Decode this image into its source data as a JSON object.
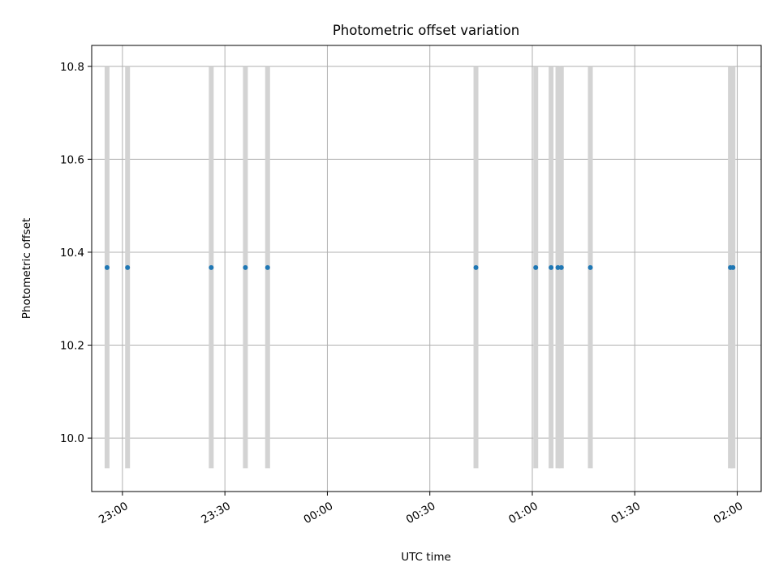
{
  "chart_data": {
    "type": "scatter",
    "title": "Photometric offset variation",
    "xlabel": "UTC time",
    "ylabel": "Photometric offset",
    "xlim": [
      "22:51",
      "02:07"
    ],
    "ylim": [
      9.885,
      10.845
    ],
    "grid": true,
    "x_ticks": [
      "23:00",
      "23:30",
      "00:00",
      "00:30",
      "01:00",
      "01:30",
      "02:00"
    ],
    "y_ticks": [
      "10.0",
      "10.2",
      "10.4",
      "10.6",
      "10.8"
    ],
    "band": {
      "low": 9.935,
      "high": 10.8,
      "color": "#d3d3d3"
    },
    "series": [
      {
        "marker_color": "#1f77b4",
        "points": [
          {
            "x": "22:55:30",
            "y": 10.367
          },
          {
            "x": "23:01:30",
            "y": 10.367
          },
          {
            "x": "23:26:00",
            "y": 10.367
          },
          {
            "x": "23:36:00",
            "y": 10.367
          },
          {
            "x": "23:42:30",
            "y": 10.367
          },
          {
            "x": "00:43:30",
            "y": 10.367
          },
          {
            "x": "01:01:00",
            "y": 10.367
          },
          {
            "x": "01:05:30",
            "y": 10.367
          },
          {
            "x": "01:07:30",
            "y": 10.367
          },
          {
            "x": "01:08:30",
            "y": 10.367
          },
          {
            "x": "01:17:00",
            "y": 10.367
          },
          {
            "x": "01:58:00",
            "y": 10.367
          },
          {
            "x": "01:58:45",
            "y": 10.367
          }
        ]
      }
    ]
  }
}
